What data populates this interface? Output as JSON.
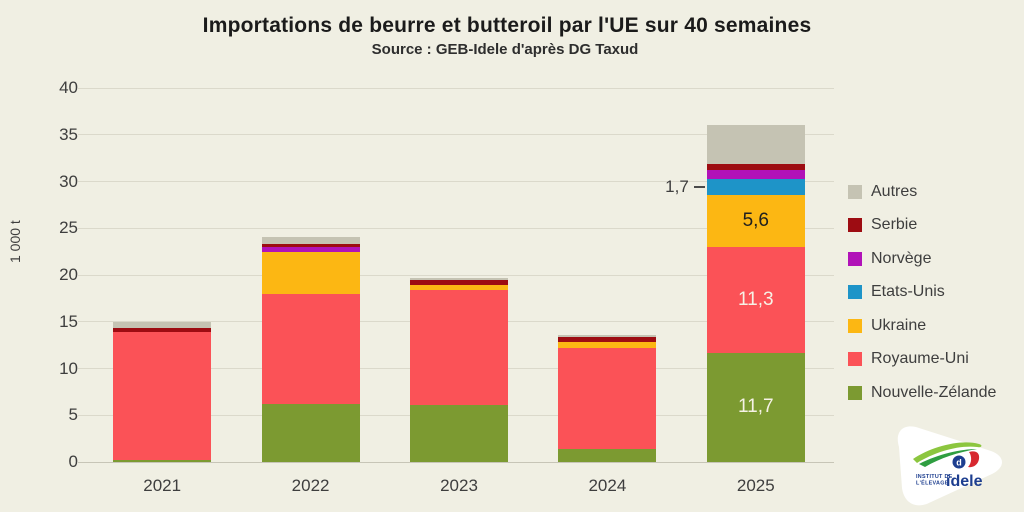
{
  "title": "Importations de beurre et butteroil par l'UE sur 40 semaines",
  "subtitle": "Source : GEB-Idele d'après DG Taxud",
  "colors": {
    "background": "#f0efe3",
    "gridline": "#dbd9cb",
    "axis_line": "#c7c5b7",
    "text": "#3e3e3e",
    "title_text": "#1b1b1b"
  },
  "chart_data": {
    "type": "bar",
    "stacked": true,
    "title": "Importations de beurre et butteroil par l'UE sur 40 semaines",
    "subtitle": "Source : GEB-Idele d'après DG Taxud",
    "categories": [
      "2021",
      "2022",
      "2023",
      "2024",
      "2025"
    ],
    "ylabel": "1 000 t",
    "xlabel": "",
    "ylim": [
      0,
      40
    ],
    "yticks": [
      0,
      5,
      10,
      15,
      20,
      25,
      30,
      35,
      40
    ],
    "grid": true,
    "legend_position": "right",
    "legend_order_note": "legend shown top-to-bottom is reverse of stacking order",
    "series": [
      {
        "name": "Nouvelle-Zélande",
        "color": "#7c9a31",
        "values": [
          0.2,
          6.2,
          6.1,
          1.4,
          11.7
        ],
        "labels": [
          null,
          null,
          null,
          null,
          "11,7"
        ],
        "label_color": "#f6f2e6",
        "label_placement": "inside"
      },
      {
        "name": "Royaume-Uni",
        "color": "#fb5257",
        "values": [
          13.7,
          11.8,
          12.3,
          10.8,
          11.3
        ],
        "labels": [
          null,
          null,
          null,
          null,
          "11,3"
        ],
        "label_color": "#f6f2e6",
        "label_placement": "inside"
      },
      {
        "name": "Ukraine",
        "color": "#fcb713",
        "values": [
          0,
          4.5,
          0.5,
          0.6,
          5.6
        ],
        "labels": [
          null,
          null,
          null,
          null,
          "5,6"
        ],
        "label_color": "#1f1f1f",
        "label_placement": "inside"
      },
      {
        "name": "Etats-Unis",
        "color": "#1e94c8",
        "values": [
          0,
          0,
          0,
          0,
          1.7
        ],
        "labels": [
          null,
          null,
          null,
          null,
          "1,7"
        ],
        "label_color": "#3e3e3e",
        "label_placement": "outside-left"
      },
      {
        "name": "Norvège",
        "color": "#b112b8",
        "values": [
          0,
          0.5,
          0,
          0,
          0.9
        ],
        "labels": [
          null,
          null,
          null,
          null,
          null
        ],
        "label_color": "#3e3e3e",
        "label_placement": "inside"
      },
      {
        "name": "Serbie",
        "color": "#9d0c12",
        "values": [
          0.4,
          0.3,
          0.6,
          0.6,
          0.7
        ],
        "labels": [
          null,
          null,
          null,
          null,
          null
        ],
        "label_color": "#3e3e3e",
        "label_placement": "inside"
      },
      {
        "name": "Autres",
        "color": "#c5c3b3",
        "values": [
          0.7,
          0.8,
          0.2,
          0.2,
          4.1
        ],
        "labels": [
          null,
          null,
          null,
          null,
          null
        ],
        "label_color": "#3e3e3e",
        "label_placement": "inside"
      }
    ]
  },
  "logo": {
    "org_line1": "INSTITUT DE",
    "org_line2": "L'ÉLEVAGE",
    "brand": "idele"
  }
}
